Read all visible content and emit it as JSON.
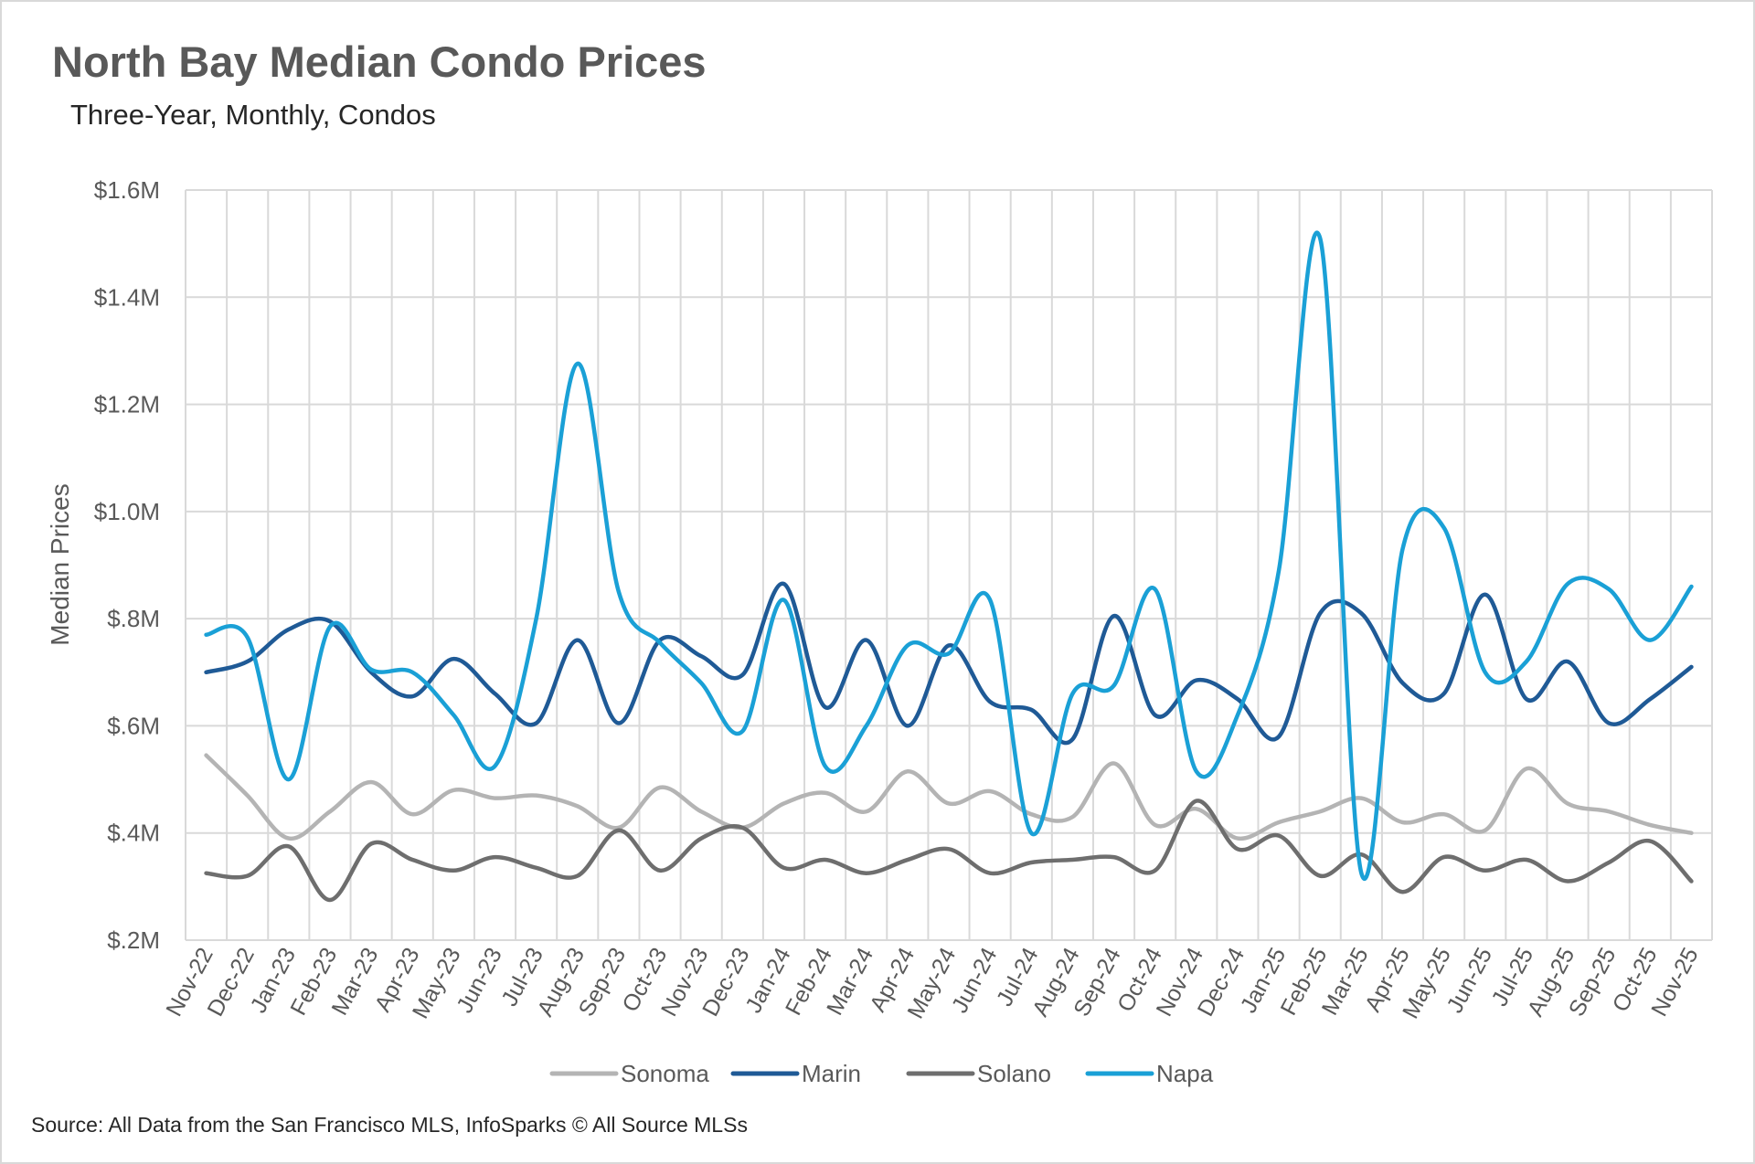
{
  "chart_data": {
    "type": "line",
    "title": "North Bay Median Condo Prices",
    "subtitle": "Three-Year, Monthly, Condos",
    "ylabel": "Median Prices",
    "xlabel": "",
    "ylim": [
      0.2,
      1.6
    ],
    "yticks": [
      "$.2M",
      "$.4M",
      "$.6M",
      "$.8M",
      "$1.0M",
      "$1.2M",
      "$1.4M",
      "$1.6M"
    ],
    "ytick_values": [
      0.2,
      0.4,
      0.6,
      0.8,
      1.0,
      1.2,
      1.4,
      1.6
    ],
    "grid": true,
    "legend": "bottom",
    "categories": [
      "Nov-22",
      "Dec-22",
      "Jan-23",
      "Feb-23",
      "Mar-23",
      "Apr-23",
      "May-23",
      "Jun-23",
      "Jul-23",
      "Aug-23",
      "Sep-23",
      "Oct-23",
      "Nov-23",
      "Dec-23",
      "Jan-24",
      "Feb-24",
      "Mar-24",
      "Apr-24",
      "May-24",
      "Jun-24",
      "Jul-24",
      "Aug-24",
      "Sep-24",
      "Oct-24",
      "Nov-24",
      "Dec-24",
      "Jan-25",
      "Feb-25",
      "Mar-25",
      "Apr-25",
      "May-25",
      "Jun-25",
      "Jul-25",
      "Aug-25",
      "Sep-25",
      "Oct-25",
      "Nov-25"
    ],
    "series": [
      {
        "name": "Sonoma",
        "color": "#b4b4b4",
        "values": [
          0.545,
          0.47,
          0.39,
          0.44,
          0.495,
          0.435,
          0.48,
          0.465,
          0.47,
          0.45,
          0.41,
          0.485,
          0.44,
          0.41,
          0.455,
          0.475,
          0.44,
          0.515,
          0.455,
          0.478,
          0.435,
          0.43,
          0.53,
          0.415,
          0.445,
          0.39,
          0.42,
          0.44,
          0.465,
          0.42,
          0.435,
          0.405,
          0.52,
          0.455,
          0.44,
          0.415,
          0.4
        ]
      },
      {
        "name": "Marin",
        "color": "#1f5a96",
        "values": [
          0.7,
          0.72,
          0.78,
          0.795,
          0.7,
          0.655,
          0.725,
          0.66,
          0.605,
          0.76,
          0.605,
          0.76,
          0.73,
          0.695,
          0.865,
          0.635,
          0.76,
          0.6,
          0.75,
          0.645,
          0.63,
          0.575,
          0.805,
          0.62,
          0.685,
          0.65,
          0.58,
          0.81,
          0.81,
          0.68,
          0.66,
          0.845,
          0.65,
          0.72,
          0.605,
          0.65,
          0.71
        ]
      },
      {
        "name": "Solano",
        "color": "#6e6e6e",
        "values": [
          0.325,
          0.32,
          0.375,
          0.275,
          0.38,
          0.35,
          0.33,
          0.355,
          0.335,
          0.32,
          0.405,
          0.33,
          0.39,
          0.41,
          0.335,
          0.35,
          0.325,
          0.35,
          0.37,
          0.325,
          0.345,
          0.35,
          0.355,
          0.33,
          0.46,
          0.37,
          0.395,
          0.32,
          0.36,
          0.29,
          0.355,
          0.33,
          0.35,
          0.31,
          0.345,
          0.385,
          0.31
        ]
      },
      {
        "name": "Napa",
        "color": "#1aa0d6",
        "values": [
          0.77,
          0.765,
          0.5,
          0.785,
          0.705,
          0.7,
          0.62,
          0.525,
          0.8,
          1.276,
          0.85,
          0.755,
          0.68,
          0.59,
          0.835,
          0.525,
          0.6,
          0.75,
          0.735,
          0.835,
          0.4,
          0.66,
          0.675,
          0.855,
          0.515,
          0.62,
          0.89,
          1.51,
          0.325,
          0.93,
          0.97,
          0.7,
          0.72,
          0.865,
          0.855,
          0.76,
          0.86
        ]
      }
    ]
  },
  "source": "Source: All Data from the San Francisco MLS, InfoSparks © All Source MLSs"
}
